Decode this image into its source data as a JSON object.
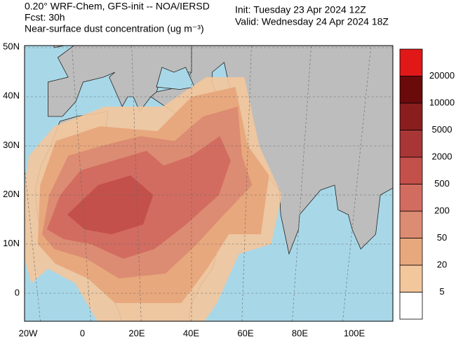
{
  "header": {
    "title": "0.20° WRF-Chem, GFS-init -- NOA/IERSD",
    "forecast": "Fcst: 30h",
    "variable": "Near-surface dust concentration (ug m⁻³)",
    "init": "Init: Tuesday 23 Apr 2024  12Z",
    "valid": "Valid: Wednesday 24 Apr 2024  18Z"
  },
  "map": {
    "lat_labels": [
      "50N",
      "40N",
      "30N",
      "20N",
      "10N",
      "0"
    ],
    "lon_labels": [
      "20W",
      "0",
      "20E",
      "40E",
      "60E",
      "80E",
      "100E"
    ]
  },
  "colorbar": {
    "levels": [
      5,
      20,
      50,
      200,
      500,
      2000,
      5000,
      10000,
      20000
    ],
    "colors": [
      "#ffffff",
      "#f3c79c",
      "#e8a87d",
      "#dc8c72",
      "#d26c60",
      "#c4504b",
      "#a83636",
      "#8a1e1e",
      "#6a0a0a",
      "#e01818"
    ]
  }
}
